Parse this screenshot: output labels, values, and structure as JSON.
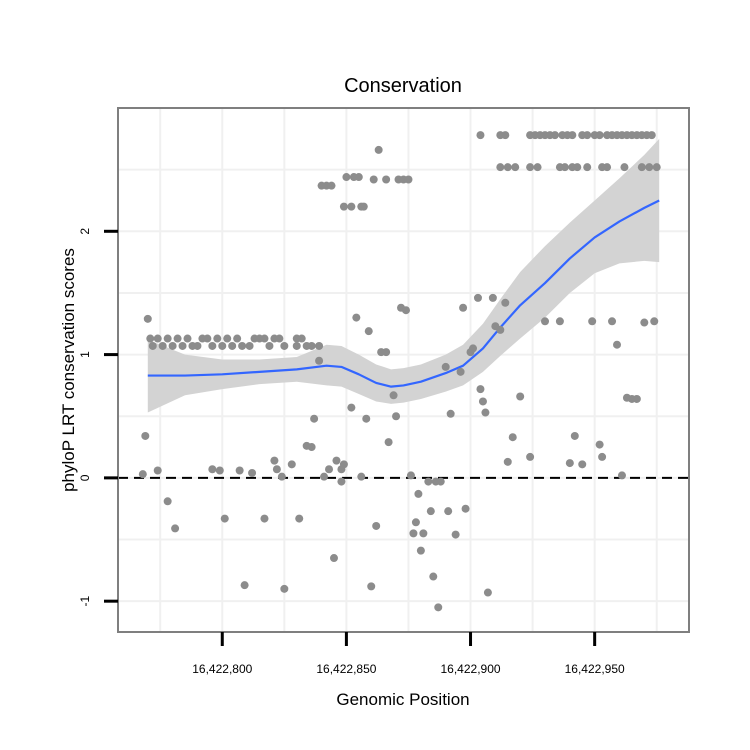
{
  "chart_data": {
    "type": "scatter",
    "title": "Conservation",
    "xlabel": "Genomic Position",
    "ylabel": "phyloP LRT conservation scores",
    "xlim": [
      16422758,
      16422988
    ],
    "ylim": [
      -1.25,
      3.0
    ],
    "x_ticks": [
      16422800,
      16422850,
      16422900,
      16422950
    ],
    "x_tick_labels": [
      "16,422,800",
      "16,422,850",
      "16,422,900",
      "16,422,950"
    ],
    "y_ticks": [
      -1,
      0,
      1,
      2
    ],
    "y_tick_labels": [
      "-1",
      "0",
      "1",
      "2"
    ],
    "reference_line": {
      "y": 0,
      "style": "dashed"
    },
    "colors": {
      "points": "#8c8c8c",
      "smooth": "#3366ff",
      "band": "#d3d3d3",
      "border": "#7f7f7f",
      "grid": "#f0f0f0"
    },
    "points": [
      [
        16422770,
        1.29
      ],
      [
        16422771,
        1.13
      ],
      [
        16422772,
        1.07
      ],
      [
        16422774,
        1.13
      ],
      [
        16422776,
        1.07
      ],
      [
        16422778,
        1.13
      ],
      [
        16422780,
        1.07
      ],
      [
        16422782,
        1.13
      ],
      [
        16422784,
        1.07
      ],
      [
        16422786,
        1.13
      ],
      [
        16422788,
        1.07
      ],
      [
        16422790,
        1.07
      ],
      [
        16422792,
        1.13
      ],
      [
        16422794,
        1.13
      ],
      [
        16422796,
        1.07
      ],
      [
        16422798,
        1.13
      ],
      [
        16422800,
        1.07
      ],
      [
        16422802,
        1.13
      ],
      [
        16422804,
        1.07
      ],
      [
        16422806,
        1.13
      ],
      [
        16422808,
        1.07
      ],
      [
        16422811,
        1.07
      ],
      [
        16422813,
        1.13
      ],
      [
        16422815,
        1.13
      ],
      [
        16422817,
        1.13
      ],
      [
        16422819,
        1.07
      ],
      [
        16422821,
        1.13
      ],
      [
        16422823,
        1.13
      ],
      [
        16422825,
        1.07
      ],
      [
        16422830,
        1.13
      ],
      [
        16422832,
        1.13
      ],
      [
        16422830,
        1.07
      ],
      [
        16422834,
        1.07
      ],
      [
        16422836,
        1.07
      ],
      [
        16422839,
        1.07
      ],
      [
        16422769,
        0.34
      ],
      [
        16422768,
        0.03
      ],
      [
        16422774,
        0.06
      ],
      [
        16422778,
        -0.19
      ],
      [
        16422781,
        -0.41
      ],
      [
        16422796,
        0.07
      ],
      [
        16422799,
        0.06
      ],
      [
        16422801,
        -0.33
      ],
      [
        16422807,
        0.06
      ],
      [
        16422809,
        -0.87
      ],
      [
        16422812,
        0.04
      ],
      [
        16422817,
        -0.33
      ],
      [
        16422821,
        0.14
      ],
      [
        16422822,
        0.07
      ],
      [
        16422824,
        0.01
      ],
      [
        16422825,
        -0.9
      ],
      [
        16422828,
        0.11
      ],
      [
        16422831,
        -0.33
      ],
      [
        16422834,
        0.26
      ],
      [
        16422836,
        0.25
      ],
      [
        16422837,
        0.48
      ],
      [
        16422839,
        0.95
      ],
      [
        16422841,
        0.01
      ],
      [
        16422843,
        0.07
      ],
      [
        16422845,
        -0.65
      ],
      [
        16422846,
        0.14
      ],
      [
        16422848,
        -0.03
      ],
      [
        16422848,
        0.07
      ],
      [
        16422849,
        0.11
      ],
      [
        16422852,
        0.57
      ],
      [
        16422854,
        1.3
      ],
      [
        16422856,
        0.01
      ],
      [
        16422858,
        0.48
      ],
      [
        16422859,
        1.19
      ],
      [
        16422860,
        -0.88
      ],
      [
        16422862,
        -0.39
      ],
      [
        16422864,
        1.02
      ],
      [
        16422866,
        1.02
      ],
      [
        16422867,
        0.29
      ],
      [
        16422869,
        0.67
      ],
      [
        16422870,
        0.5
      ],
      [
        16422872,
        1.38
      ],
      [
        16422874,
        1.36
      ],
      [
        16422876,
        0.02
      ],
      [
        16422877,
        -0.45
      ],
      [
        16422878,
        -0.36
      ],
      [
        16422879,
        -0.13
      ],
      [
        16422880,
        -0.59
      ],
      [
        16422881,
        -0.45
      ],
      [
        16422883,
        -0.03
      ],
      [
        16422884,
        -0.27
      ],
      [
        16422885,
        -0.8
      ],
      [
        16422886,
        -0.03
      ],
      [
        16422887,
        -1.05
      ],
      [
        16422888,
        -0.03
      ],
      [
        16422890,
        0.9
      ],
      [
        16422891,
        -0.27
      ],
      [
        16422892,
        0.52
      ],
      [
        16422894,
        -0.46
      ],
      [
        16422896,
        0.86
      ],
      [
        16422897,
        1.38
      ],
      [
        16422898,
        -0.25
      ],
      [
        16422900,
        1.02
      ],
      [
        16422901,
        1.05
      ],
      [
        16422903,
        1.46
      ],
      [
        16422904,
        0.72
      ],
      [
        16422905,
        0.62
      ],
      [
        16422906,
        0.53
      ],
      [
        16422907,
        -0.93
      ],
      [
        16422909,
        1.46
      ],
      [
        16422910,
        1.23
      ],
      [
        16422912,
        1.2
      ],
      [
        16422914,
        1.42
      ],
      [
        16422915,
        0.13
      ],
      [
        16422917,
        0.33
      ],
      [
        16422920,
        0.66
      ],
      [
        16422924,
        0.17
      ],
      [
        16422930,
        1.27
      ],
      [
        16422936,
        1.27
      ],
      [
        16422940,
        0.12
      ],
      [
        16422942,
        0.34
      ],
      [
        16422945,
        0.11
      ],
      [
        16422949,
        1.27
      ],
      [
        16422952,
        0.27
      ],
      [
        16422953,
        0.17
      ],
      [
        16422957,
        1.27
      ],
      [
        16422959,
        1.08
      ],
      [
        16422961,
        0.02
      ],
      [
        16422963,
        0.65
      ],
      [
        16422965,
        0.64
      ],
      [
        16422967,
        0.64
      ],
      [
        16422970,
        1.26
      ],
      [
        16422974,
        1.27
      ],
      [
        16422840,
        2.37
      ],
      [
        16422842,
        2.37
      ],
      [
        16422844,
        2.37
      ],
      [
        16422849,
        2.2
      ],
      [
        16422850,
        2.44
      ],
      [
        16422852,
        2.2
      ],
      [
        16422853,
        2.44
      ],
      [
        16422855,
        2.44
      ],
      [
        16422856,
        2.2
      ],
      [
        16422857,
        2.2
      ],
      [
        16422861,
        2.42
      ],
      [
        16422863,
        2.66
      ],
      [
        16422866,
        2.42
      ],
      [
        16422871,
        2.42
      ],
      [
        16422873,
        2.42
      ],
      [
        16422875,
        2.42
      ],
      [
        16422904,
        2.78
      ],
      [
        16422912,
        2.78
      ],
      [
        16422914,
        2.78
      ],
      [
        16422912,
        2.52
      ],
      [
        16422915,
        2.52
      ],
      [
        16422918,
        2.52
      ],
      [
        16422924,
        2.78
      ],
      [
        16422926,
        2.78
      ],
      [
        16422928,
        2.78
      ],
      [
        16422930,
        2.78
      ],
      [
        16422932,
        2.78
      ],
      [
        16422934,
        2.78
      ],
      [
        16422924,
        2.52
      ],
      [
        16422927,
        2.52
      ],
      [
        16422936,
        2.52
      ],
      [
        16422937,
        2.78
      ],
      [
        16422939,
        2.78
      ],
      [
        16422941,
        2.78
      ],
      [
        16422938,
        2.52
      ],
      [
        16422941,
        2.52
      ],
      [
        16422943,
        2.52
      ],
      [
        16422947,
        2.52
      ],
      [
        16422945,
        2.78
      ],
      [
        16422947,
        2.78
      ],
      [
        16422950,
        2.78
      ],
      [
        16422952,
        2.78
      ],
      [
        16422953,
        2.52
      ],
      [
        16422955,
        2.52
      ],
      [
        16422955,
        2.78
      ],
      [
        16422957,
        2.78
      ],
      [
        16422959,
        2.78
      ],
      [
        16422961,
        2.78
      ],
      [
        16422963,
        2.78
      ],
      [
        16422965,
        2.78
      ],
      [
        16422962,
        2.52
      ],
      [
        16422967,
        2.78
      ],
      [
        16422969,
        2.78
      ],
      [
        16422971,
        2.78
      ],
      [
        16422973,
        2.78
      ],
      [
        16422969,
        2.52
      ],
      [
        16422972,
        2.52
      ],
      [
        16422975,
        2.52
      ]
    ],
    "smooth": [
      [
        16422770,
        0.83
      ],
      [
        16422785,
        0.83
      ],
      [
        16422800,
        0.84
      ],
      [
        16422815,
        0.86
      ],
      [
        16422830,
        0.88
      ],
      [
        16422842,
        0.91
      ],
      [
        16422848,
        0.9
      ],
      [
        16422855,
        0.84
      ],
      [
        16422862,
        0.77
      ],
      [
        16422868,
        0.74
      ],
      [
        16422873,
        0.75
      ],
      [
        16422880,
        0.78
      ],
      [
        16422890,
        0.85
      ],
      [
        16422897,
        0.91
      ],
      [
        16422905,
        1.05
      ],
      [
        16422912,
        1.22
      ],
      [
        16422920,
        1.4
      ],
      [
        16422930,
        1.58
      ],
      [
        16422940,
        1.78
      ],
      [
        16422950,
        1.95
      ],
      [
        16422960,
        2.08
      ],
      [
        16422970,
        2.19
      ],
      [
        16422976,
        2.25
      ]
    ],
    "band_upper": [
      [
        16422770,
        1.12
      ],
      [
        16422785,
        1.0
      ],
      [
        16422800,
        0.96
      ],
      [
        16422815,
        0.96
      ],
      [
        16422830,
        0.98
      ],
      [
        16422842,
        1.08
      ],
      [
        16422848,
        1.07
      ],
      [
        16422855,
        1.0
      ],
      [
        16422862,
        0.92
      ],
      [
        16422868,
        0.88
      ],
      [
        16422873,
        0.89
      ],
      [
        16422880,
        0.92
      ],
      [
        16422890,
        1.0
      ],
      [
        16422897,
        1.08
      ],
      [
        16422905,
        1.25
      ],
      [
        16422912,
        1.45
      ],
      [
        16422920,
        1.67
      ],
      [
        16422930,
        1.88
      ],
      [
        16422940,
        2.07
      ],
      [
        16422950,
        2.25
      ],
      [
        16422960,
        2.43
      ],
      [
        16422970,
        2.62
      ],
      [
        16422976,
        2.75
      ]
    ],
    "band_lower": [
      [
        16422770,
        0.53
      ],
      [
        16422785,
        0.67
      ],
      [
        16422800,
        0.72
      ],
      [
        16422815,
        0.76
      ],
      [
        16422830,
        0.78
      ],
      [
        16422842,
        0.75
      ],
      [
        16422848,
        0.74
      ],
      [
        16422855,
        0.68
      ],
      [
        16422862,
        0.62
      ],
      [
        16422868,
        0.6
      ],
      [
        16422873,
        0.61
      ],
      [
        16422880,
        0.64
      ],
      [
        16422890,
        0.7
      ],
      [
        16422897,
        0.75
      ],
      [
        16422905,
        0.86
      ],
      [
        16422912,
        0.99
      ],
      [
        16422920,
        1.13
      ],
      [
        16422930,
        1.3
      ],
      [
        16422940,
        1.5
      ],
      [
        16422950,
        1.66
      ],
      [
        16422960,
        1.74
      ],
      [
        16422970,
        1.76
      ],
      [
        16422976,
        1.75
      ]
    ]
  }
}
